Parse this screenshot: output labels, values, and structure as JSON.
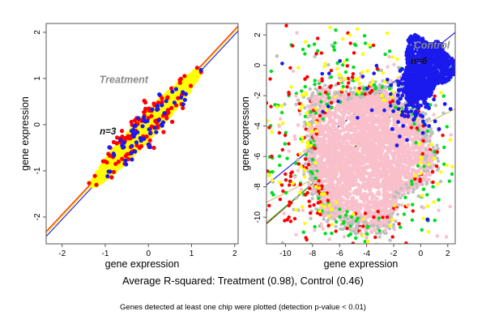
{
  "figure": {
    "caption_primary": "Average R-squared: Treatment (0.98), Control (0.46)",
    "caption_secondary": "Genes detected at least one chip were plotted (detection p-value < 0.01)"
  },
  "chart_data": [
    {
      "type": "scatter",
      "panel": "treatment",
      "seed": 101,
      "xlabel": "gene expression",
      "ylabel": "gene expression",
      "xticks": [
        -2,
        -1,
        0,
        1,
        2
      ],
      "yticks": [
        -2,
        -1,
        0,
        1,
        2
      ],
      "xlim": [
        -2.37,
        2.08
      ],
      "ylim": [
        -2.58,
        2.19
      ],
      "grid": false,
      "annotations": [
        {
          "text": "Treatment",
          "x": -0.57,
          "y": 0.9,
          "color": "#8a8a8a",
          "size": 12.5
        },
        {
          "text": "n=3",
          "x": -0.94,
          "y": -0.21,
          "color": "#111111",
          "size": 11.5
        }
      ],
      "fit_lines": [
        {
          "name": "red",
          "color": "#ff1100",
          "slope": 1,
          "intercept": 0.055
        },
        {
          "name": "yellow",
          "color": "#ffdd00",
          "slope": 1,
          "intercept": 0.018
        },
        {
          "name": "blue",
          "color": "#2222ee",
          "slope": 1,
          "intercept": -0.05
        }
      ],
      "series": [
        {
          "name": "yellow-dense-core",
          "color": "#ffff00",
          "kind": "diag",
          "center": [
            -0.06,
            -0.07
          ],
          "len": 1.26,
          "width": 0.16,
          "n": 1700,
          "r": 2.3
        },
        {
          "name": "red-outliers",
          "color": "#ff0000",
          "kind": "diagEdge",
          "center": [
            -0.08,
            -0.06
          ],
          "len": 0.55,
          "wmin": 0.05,
          "wsig": 0.1,
          "n": 115,
          "r": 2.6
        },
        {
          "name": "blue-outliers",
          "color": "#1a1aee",
          "kind": "diagEdge",
          "center": [
            -0.05,
            -0.05
          ],
          "len": 0.5,
          "wmin": 0.04,
          "wsig": 0.09,
          "n": 62,
          "r": 2.6
        }
      ],
      "stats": {
        "replicates": 3,
        "avg_r_squared": 0.98
      }
    },
    {
      "type": "scatter",
      "panel": "control",
      "seed": 2024,
      "xlabel": "gene expression",
      "ylabel": "gene expression",
      "xticks": [
        -10,
        -8,
        -6,
        -4,
        -2,
        0,
        2
      ],
      "yticks": [
        2,
        0,
        -2,
        -4,
        -6,
        -8,
        -10
      ],
      "xlim": [
        -11.4,
        2.55
      ],
      "ylim": [
        -11.75,
        2.75
      ],
      "grid": false,
      "exclude_zone": [
        -1.35,
        -1.45
      ],
      "annotations": [
        {
          "text": "Control",
          "x": 0.82,
          "y": 1.1,
          "color": "#8a8a8a",
          "size": 12.5
        },
        {
          "text": "n=6",
          "x": -0.14,
          "y": 0.08,
          "color": "#111111",
          "size": 11.5
        }
      ],
      "fit_lines": [
        {
          "name": "khaki",
          "color": "#d2c470",
          "slope": 0.44,
          "intercept": -4.0
        },
        {
          "name": "blue",
          "color": "#2222ee",
          "slope": 0.72,
          "intercept": 0.33
        },
        {
          "name": "red",
          "color": "#ff0000",
          "slope": 0.78,
          "intercept": -1.55
        },
        {
          "name": "green",
          "color": "#00cc22",
          "slope": 0.76,
          "intercept": -1.7
        }
      ],
      "series": [
        {
          "name": "pink-cloud",
          "color": "#f9c0cb",
          "kind": "blob",
          "center": [
            -4.1,
            -5.9
          ],
          "rx": 4.55,
          "ry": 4.65,
          "wobble": [
            0.1,
            0.07,
            0.05
          ],
          "phase": [
            0.8,
            2.1,
            4.0
          ],
          "n": 2600,
          "r": 2.6
        },
        {
          "name": "gray-rim",
          "color": "#bebebe",
          "kind": "rim",
          "center": [
            -4.1,
            -5.9
          ],
          "rx": 4.55,
          "ry": 4.65,
          "wobble": [
            0.1,
            0.07,
            0.05
          ],
          "phase": [
            0.8,
            2.1,
            4.0
          ],
          "n": 340,
          "r": 2.1
        },
        {
          "name": "gray-scatter",
          "color": "#bebebe",
          "kind": "gauss",
          "center": [
            -4.6,
            -5.6
          ],
          "sx": 3.1,
          "sy": 3.1,
          "n": 175,
          "r": 2.2,
          "exclude": true
        },
        {
          "name": "green-scatter",
          "color": "#00dd22",
          "kind": "gauss",
          "center": [
            -4.8,
            -5.8
          ],
          "sx": 3.2,
          "sy": 3.3,
          "n": 380,
          "r": 2.2,
          "exclude": true
        },
        {
          "name": "red-scatter",
          "color": "#ff0000",
          "kind": "gauss",
          "center": [
            -4.9,
            -5.7
          ],
          "sx": 3.4,
          "sy": 3.4,
          "n": 330,
          "r": 2.2,
          "exclude": true
        },
        {
          "name": "yellow-scatter",
          "color": "#ffff00",
          "kind": "gauss",
          "center": [
            -4.6,
            -5.5
          ],
          "sx": 3.2,
          "sy": 3.2,
          "n": 270,
          "r": 2.2,
          "exclude": true
        },
        {
          "name": "pink-scatter",
          "color": "#f9c0cb",
          "kind": "gauss",
          "center": [
            -4.4,
            -5.9
          ],
          "sx": 3.5,
          "sy": 3.5,
          "n": 200,
          "r": 2.2,
          "exclude": true
        },
        {
          "name": "blue-sprinkle",
          "color": "#1a1aee",
          "kind": "gauss",
          "center": [
            -4.6,
            -1.6
          ],
          "sx": 2.3,
          "sy": 1.1,
          "n": 22,
          "r": 2.3
        },
        {
          "name": "blue-cluster-core",
          "color": "#1a1aee",
          "kind": "blob",
          "center": [
            0.45,
            -0.05
          ],
          "rx": 1.8,
          "ry": 1.85,
          "wobble": [
            0.15,
            0.1,
            0.05
          ],
          "phase": [
            1.5,
            3.0,
            0.5
          ],
          "n": 950,
          "r": 2.4
        },
        {
          "name": "blue-cluster-tail",
          "color": "#1a1aee",
          "kind": "gauss",
          "center": [
            -0.6,
            -1.7
          ],
          "sx": 0.55,
          "sy": 0.85,
          "n": 170,
          "r": 2.4
        },
        {
          "name": "blue-straggle",
          "color": "#1a1aee",
          "kind": "gauss",
          "center": [
            -0.4,
            -3.0
          ],
          "sx": 0.9,
          "sy": 0.9,
          "n": 45,
          "r": 2.4
        },
        {
          "name": "blue-outlier-points",
          "color": "#1a1aee",
          "kind": "points",
          "pts": [
            [
              0.5,
              -10.15
            ],
            [
              1.35,
              -4.2
            ],
            [
              -2.1,
              -4.2
            ]
          ],
          "r": 2.5
        }
      ],
      "stats": {
        "replicates": 6,
        "avg_r_squared": 0.46
      }
    }
  ]
}
